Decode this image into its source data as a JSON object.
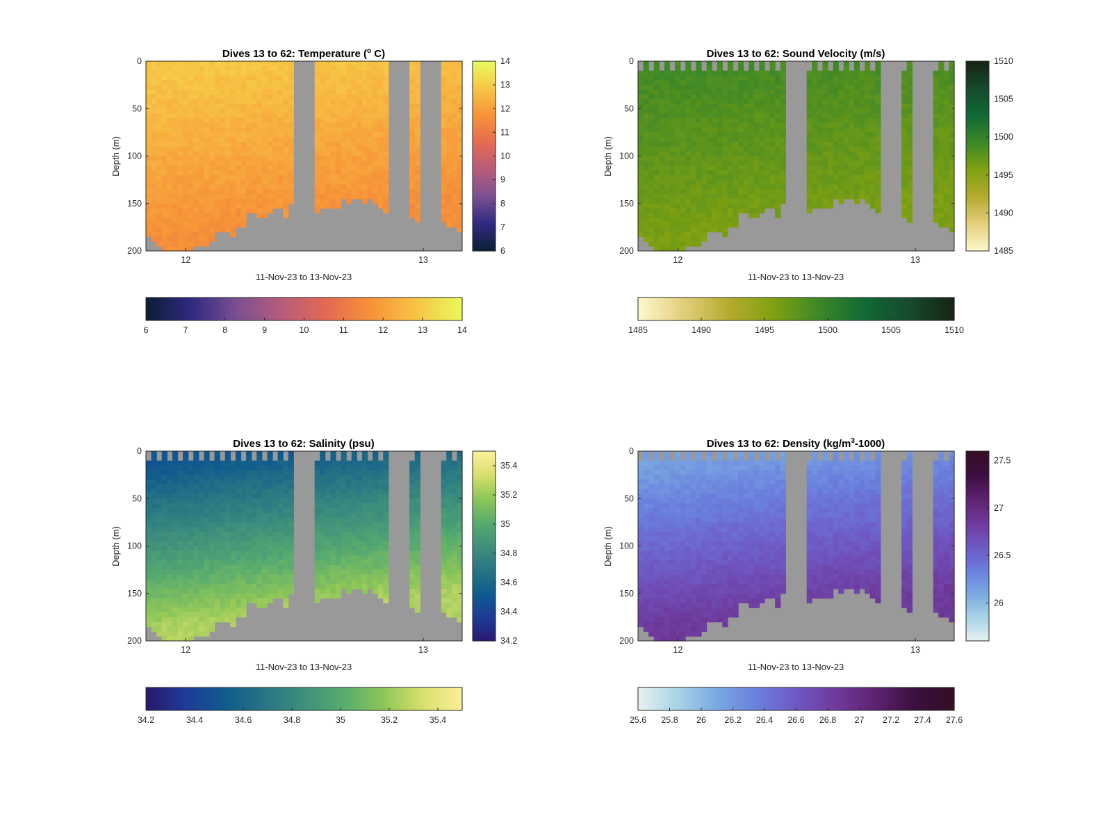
{
  "figure": {
    "background": "#ffffff",
    "nodata_color": "#999999"
  },
  "chart_data": [
    {
      "type": "heatmap",
      "id": "temperature",
      "title": "Dives 13 to 62: Temperature (",
      "title_sup": "o",
      "title_tail": " C)",
      "xlabel": "11-Nov-23 to 13-Nov-23",
      "ylabel": "Depth (m)",
      "x_ticks": [
        "12",
        "13"
      ],
      "y_ticks": [
        0,
        50,
        100,
        150,
        200
      ],
      "ylim": [
        0,
        200
      ],
      "y_reversed": true,
      "colormap": "thermal",
      "colormap_stops": [
        "#0a1e33",
        "#302a80",
        "#7a4f92",
        "#b65c7b",
        "#e46a52",
        "#f79338",
        "#f7c545",
        "#e8fb5c"
      ],
      "clim": [
        6,
        14
      ],
      "vertical_colorbar_ticks": [
        "6",
        "7",
        "8",
        "9",
        "10",
        "11",
        "12",
        "13",
        "14"
      ],
      "horizontal_colorbar_ticks": [
        "6",
        "7",
        "8",
        "9",
        "10",
        "11",
        "12",
        "13",
        "14"
      ],
      "surface_value": 12.9,
      "bottom_value": 11.6,
      "surface_notches": false
    },
    {
      "type": "heatmap",
      "id": "sound-velocity",
      "title": "Dives 13 to 62: Sound Velocity (m/s)",
      "title_sup": "",
      "title_tail": "",
      "xlabel": "11-Nov-23 to 13-Nov-23",
      "ylabel": "Depth (m)",
      "x_ticks": [
        "12",
        "13"
      ],
      "y_ticks": [
        0,
        50,
        100,
        150,
        200
      ],
      "ylim": [
        0,
        200
      ],
      "y_reversed": true,
      "colormap": "speed",
      "colormap_stops": [
        "#fdf8cd",
        "#e3cf7c",
        "#b5ab2f",
        "#80a111",
        "#3d8827",
        "#116a35",
        "#174a2e",
        "#172313"
      ],
      "clim": [
        1485,
        1510
      ],
      "vertical_colorbar_ticks": [
        "1485",
        "1490",
        "1495",
        "1500",
        "1505",
        "1510"
      ],
      "horizontal_colorbar_ticks": [
        "1485",
        "1490",
        "1495",
        "1500",
        "1505",
        "1510"
      ],
      "surface_value": 1499.0,
      "bottom_value": 1496.0,
      "surface_notches": true
    },
    {
      "type": "heatmap",
      "id": "salinity",
      "title": "Dives 13 to 62: Salinity (psu)",
      "title_sup": "",
      "title_tail": "",
      "xlabel": "11-Nov-23 to 13-Nov-23",
      "ylabel": "Depth (m)",
      "x_ticks": [
        "12",
        "13"
      ],
      "y_ticks": [
        0,
        50,
        100,
        150,
        200
      ],
      "ylim": [
        0,
        200
      ],
      "y_reversed": true,
      "colormap": "haline",
      "colormap_stops": [
        "#2a186c",
        "#1e3b98",
        "#0f5b8d",
        "#287584",
        "#3e907c",
        "#58ab6f",
        "#8dc658",
        "#d7df6c",
        "#fdef9a"
      ],
      "clim": [
        34.2,
        35.5
      ],
      "vertical_colorbar_ticks": [
        "34.2",
        "34.4",
        "34.6",
        "34.8",
        "35",
        "35.2",
        "35.4"
      ],
      "horizontal_colorbar_ticks": [
        "34.2",
        "34.4",
        "34.6",
        "34.8",
        "35",
        "35.2",
        "35.4"
      ],
      "surface_value": 34.5,
      "bottom_value": 35.25,
      "surface_notches": true
    },
    {
      "type": "heatmap",
      "id": "density",
      "title": "Dives 13 to 62: Density (kg/m",
      "title_sup": "3",
      "title_tail": "-1000)",
      "xlabel": "11-Nov-23 to 13-Nov-23",
      "ylabel": "Depth (m)",
      "x_ticks": [
        "12",
        "13"
      ],
      "y_ticks": [
        0,
        50,
        100,
        150,
        200
      ],
      "ylim": [
        0,
        200
      ],
      "y_reversed": true,
      "colormap": "dense",
      "colormap_stops": [
        "#e6f1f1",
        "#a9d3e5",
        "#79a9e1",
        "#6a7fdd",
        "#6f58c4",
        "#6e3a9b",
        "#5f2270",
        "#3a0f3e",
        "#360e24"
      ],
      "clim": [
        25.6,
        27.6
      ],
      "vertical_colorbar_ticks": [
        "26",
        "26.5",
        "27",
        "27.5"
      ],
      "horizontal_colorbar_ticks": [
        "25.6",
        "25.8",
        "26",
        "26.2",
        "26.4",
        "26.6",
        "26.8",
        "27",
        "27.2",
        "27.4",
        "27.6"
      ],
      "surface_value": 26.15,
      "bottom_value": 26.85,
      "surface_notches": true
    }
  ]
}
